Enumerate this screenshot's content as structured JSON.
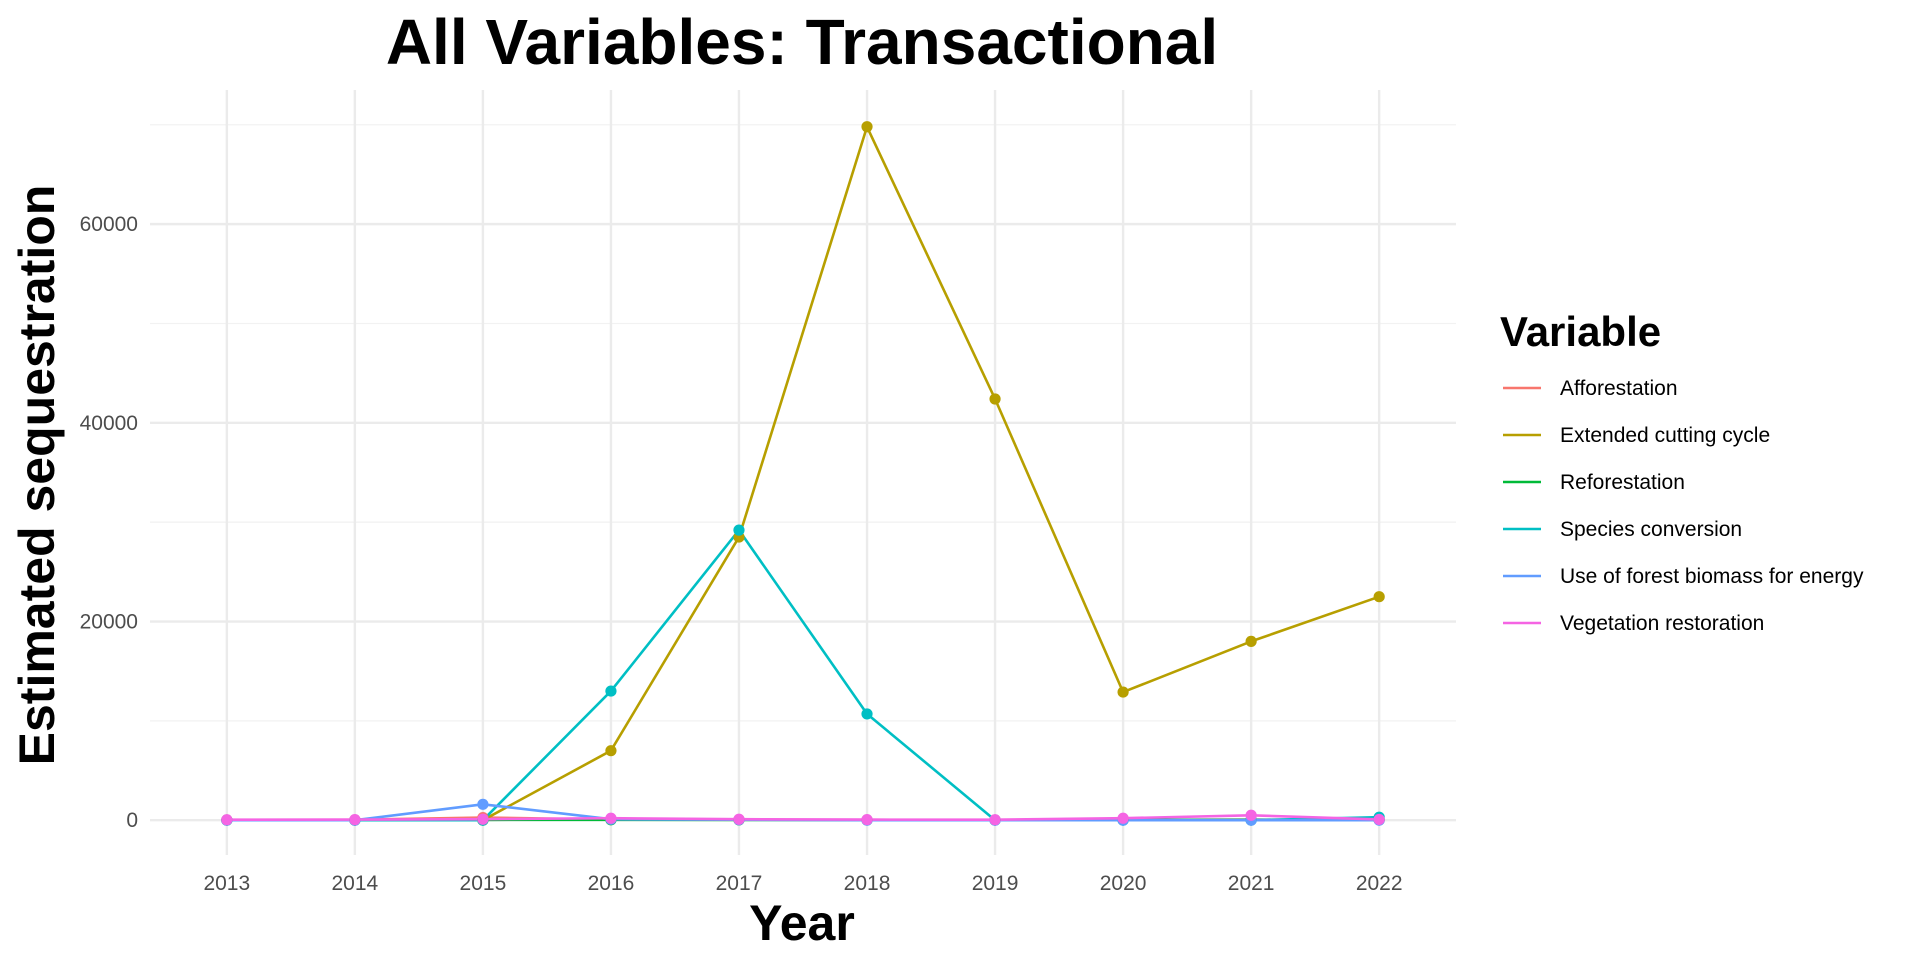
{
  "chart_data": {
    "type": "line",
    "title": "All Variables: Transactional",
    "xlabel": "Year",
    "ylabel": "Estimated sequestration",
    "x": [
      2013,
      2014,
      2015,
      2016,
      2017,
      2018,
      2019,
      2020,
      2021,
      2022
    ],
    "x_tick_labels": [
      "2013",
      "2014",
      "2015",
      "2016",
      "2017",
      "2018",
      "2019",
      "2020",
      "2021",
      "2022"
    ],
    "y_ticks": [
      0,
      20000,
      40000,
      60000
    ],
    "y_tick_labels": [
      "0",
      "20000",
      "40000",
      "60000"
    ],
    "xlim": [
      2012.4,
      2022.6
    ],
    "ylim": [
      -3500,
      73500
    ],
    "grid": true,
    "legend": {
      "title": "Variable",
      "position": "right"
    },
    "series": [
      {
        "name": "Afforestation",
        "color": "#F8766D",
        "values": [
          30,
          40,
          260,
          70,
          50,
          30,
          30,
          40,
          60,
          50
        ]
      },
      {
        "name": "Extended cutting cycle",
        "color": "#B79F00",
        "values": [
          0,
          0,
          0,
          7000,
          28500,
          69800,
          42400,
          12900,
          18000,
          22500
        ]
      },
      {
        "name": "Reforestation",
        "color": "#00BA38",
        "values": [
          20,
          20,
          30,
          40,
          30,
          20,
          20,
          30,
          40,
          30
        ]
      },
      {
        "name": "Species conversion",
        "color": "#00BFC4",
        "values": [
          0,
          0,
          0,
          13000,
          29200,
          10700,
          0,
          0,
          0,
          300
        ]
      },
      {
        "name": "Use of forest biomass for energy",
        "color": "#619CFF",
        "values": [
          0,
          0,
          1600,
          100,
          50,
          0,
          0,
          0,
          0,
          0
        ]
      },
      {
        "name": "Vegetation restoration",
        "color": "#F564E3",
        "values": [
          50,
          60,
          100,
          200,
          100,
          60,
          50,
          200,
          500,
          80
        ]
      }
    ]
  }
}
